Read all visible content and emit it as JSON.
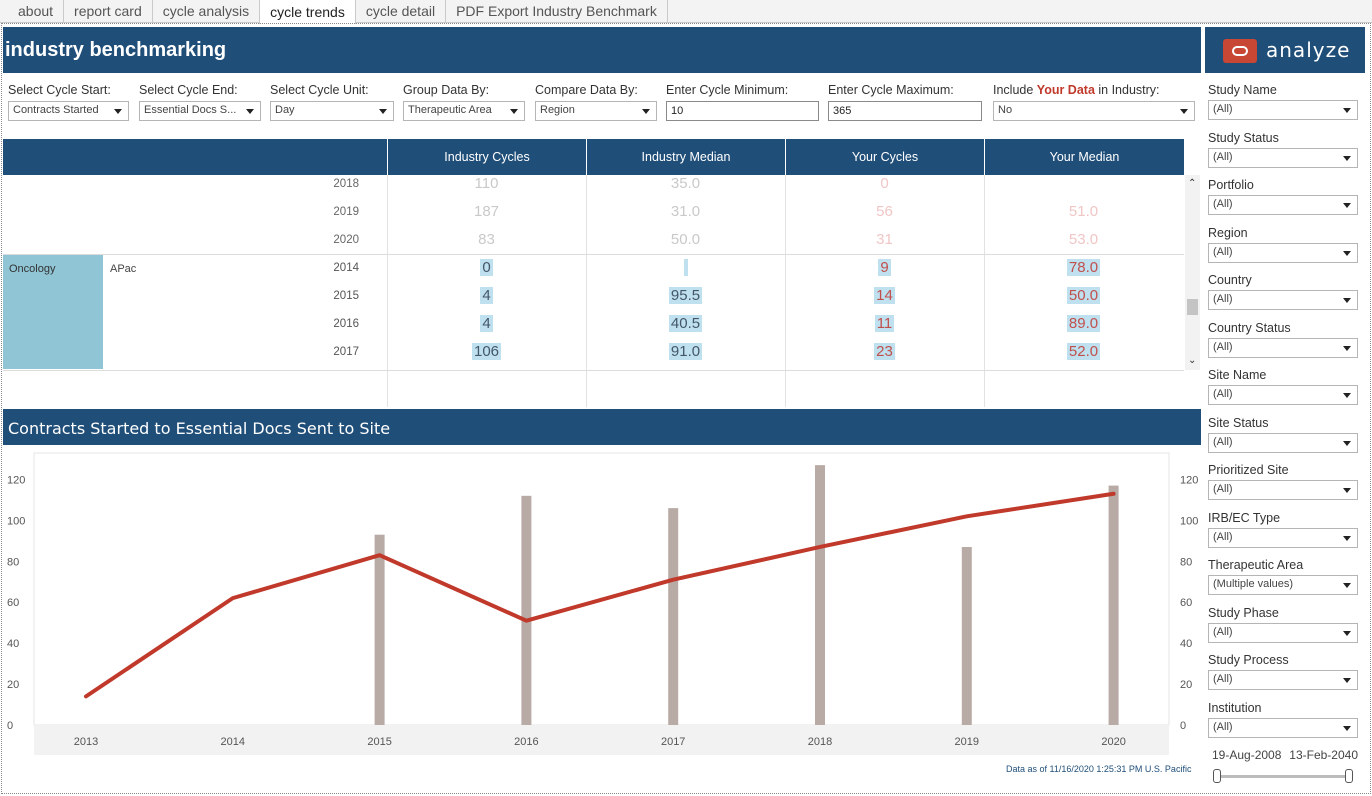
{
  "tabs": [
    "about",
    "report card",
    "cycle analysis",
    "cycle trends",
    "cycle detail",
    "PDF Export Industry Benchmark"
  ],
  "active_tab": "cycle trends",
  "header": {
    "title": "industry benchmarking",
    "brand": "analyze"
  },
  "filters": {
    "cycle_start": {
      "label": "Select Cycle Start:",
      "value": "Contracts Started"
    },
    "cycle_end": {
      "label": "Select Cycle End:",
      "value": "Essential Docs S..."
    },
    "cycle_unit": {
      "label": "Select Cycle Unit:",
      "value": "Day"
    },
    "group_by": {
      "label": "Group Data By:",
      "value": "Therapeutic Area"
    },
    "compare_by": {
      "label": "Compare Data By:",
      "value": "Region"
    },
    "cycle_min": {
      "label": "Enter Cycle Minimum:",
      "value": "10"
    },
    "cycle_max": {
      "label": "Enter Cycle Maximum:",
      "value": "365"
    },
    "include": {
      "label_pre": "Include ",
      "label_hl": "Your Data",
      "label_post": " in Industry:",
      "value": "No"
    }
  },
  "table": {
    "headers": [
      "Industry Cycles",
      "Industry Median",
      "Your Cycles",
      "Your Median"
    ],
    "group_label": "Oncology",
    "region_label": "APac",
    "faded_rows": [
      {
        "year": "2018",
        "industry_cycles": "110",
        "industry_median": "35.0",
        "your_cycles": "0",
        "your_median": ""
      },
      {
        "year": "2019",
        "industry_cycles": "187",
        "industry_median": "31.0",
        "your_cycles": "56",
        "your_median": "51.0"
      },
      {
        "year": "2020",
        "industry_cycles": "83",
        "industry_median": "50.0",
        "your_cycles": "31",
        "your_median": "53.0"
      }
    ],
    "rows": [
      {
        "year": "2014",
        "industry_cycles": "0",
        "industry_median": "",
        "your_cycles": "9",
        "your_median": "78.0"
      },
      {
        "year": "2015",
        "industry_cycles": "4",
        "industry_median": "95.5",
        "your_cycles": "14",
        "your_median": "50.0"
      },
      {
        "year": "2016",
        "industry_cycles": "4",
        "industry_median": "40.5",
        "your_cycles": "11",
        "your_median": "89.0"
      },
      {
        "year": "2017",
        "industry_cycles": "106",
        "industry_median": "91.0",
        "your_cycles": "23",
        "your_median": "52.0"
      }
    ]
  },
  "chart": {
    "title": "Contracts Started to Essential Docs Sent to Site"
  },
  "chart_data": {
    "type": "bar",
    "categories": [
      "2013",
      "2014",
      "2015",
      "2016",
      "2017",
      "2018",
      "2019",
      "2020"
    ],
    "series": [
      {
        "type": "bar",
        "values": [
          null,
          null,
          93,
          112,
          106,
          127,
          87,
          117
        ],
        "color": "#b8aba6"
      },
      {
        "type": "line",
        "values": [
          14,
          62,
          83,
          51,
          71,
          87,
          102,
          113
        ],
        "color": "#c0392b"
      }
    ],
    "ylim": [
      0,
      130
    ],
    "yticks": [
      0,
      20,
      40,
      60,
      80,
      100,
      120
    ],
    "grid": false
  },
  "footnote": "Data as of 11/16/2020 1:25:31 PM U.S. Pacific",
  "right_filters": [
    {
      "label": "Study Name",
      "value": "(All)"
    },
    {
      "label": "Study Status",
      "value": "(All)"
    },
    {
      "label": "Portfolio",
      "value": "(All)"
    },
    {
      "label": "Region",
      "value": "(All)"
    },
    {
      "label": "Country",
      "value": "(All)"
    },
    {
      "label": "Country Status",
      "value": "(All)"
    },
    {
      "label": "Site Name",
      "value": "(All)"
    },
    {
      "label": "Site Status",
      "value": "(All)"
    },
    {
      "label": "Prioritized Site",
      "value": "(All)"
    },
    {
      "label": "IRB/EC Type",
      "value": "(All)"
    },
    {
      "label": "Therapeutic Area",
      "value": "(Multiple values)"
    },
    {
      "label": "Study Phase",
      "value": "(All)"
    },
    {
      "label": "Study Process",
      "value": "(All)"
    },
    {
      "label": "Institution",
      "value": "(All)"
    }
  ],
  "date_range": {
    "start": "19-Aug-2008",
    "end": "13-Feb-2040"
  },
  "colors": {
    "header_bg": "#1f4e79",
    "accent_red": "#c0392b",
    "highlight": "#bfe0ee",
    "group_cell": "#8fc5d5"
  }
}
